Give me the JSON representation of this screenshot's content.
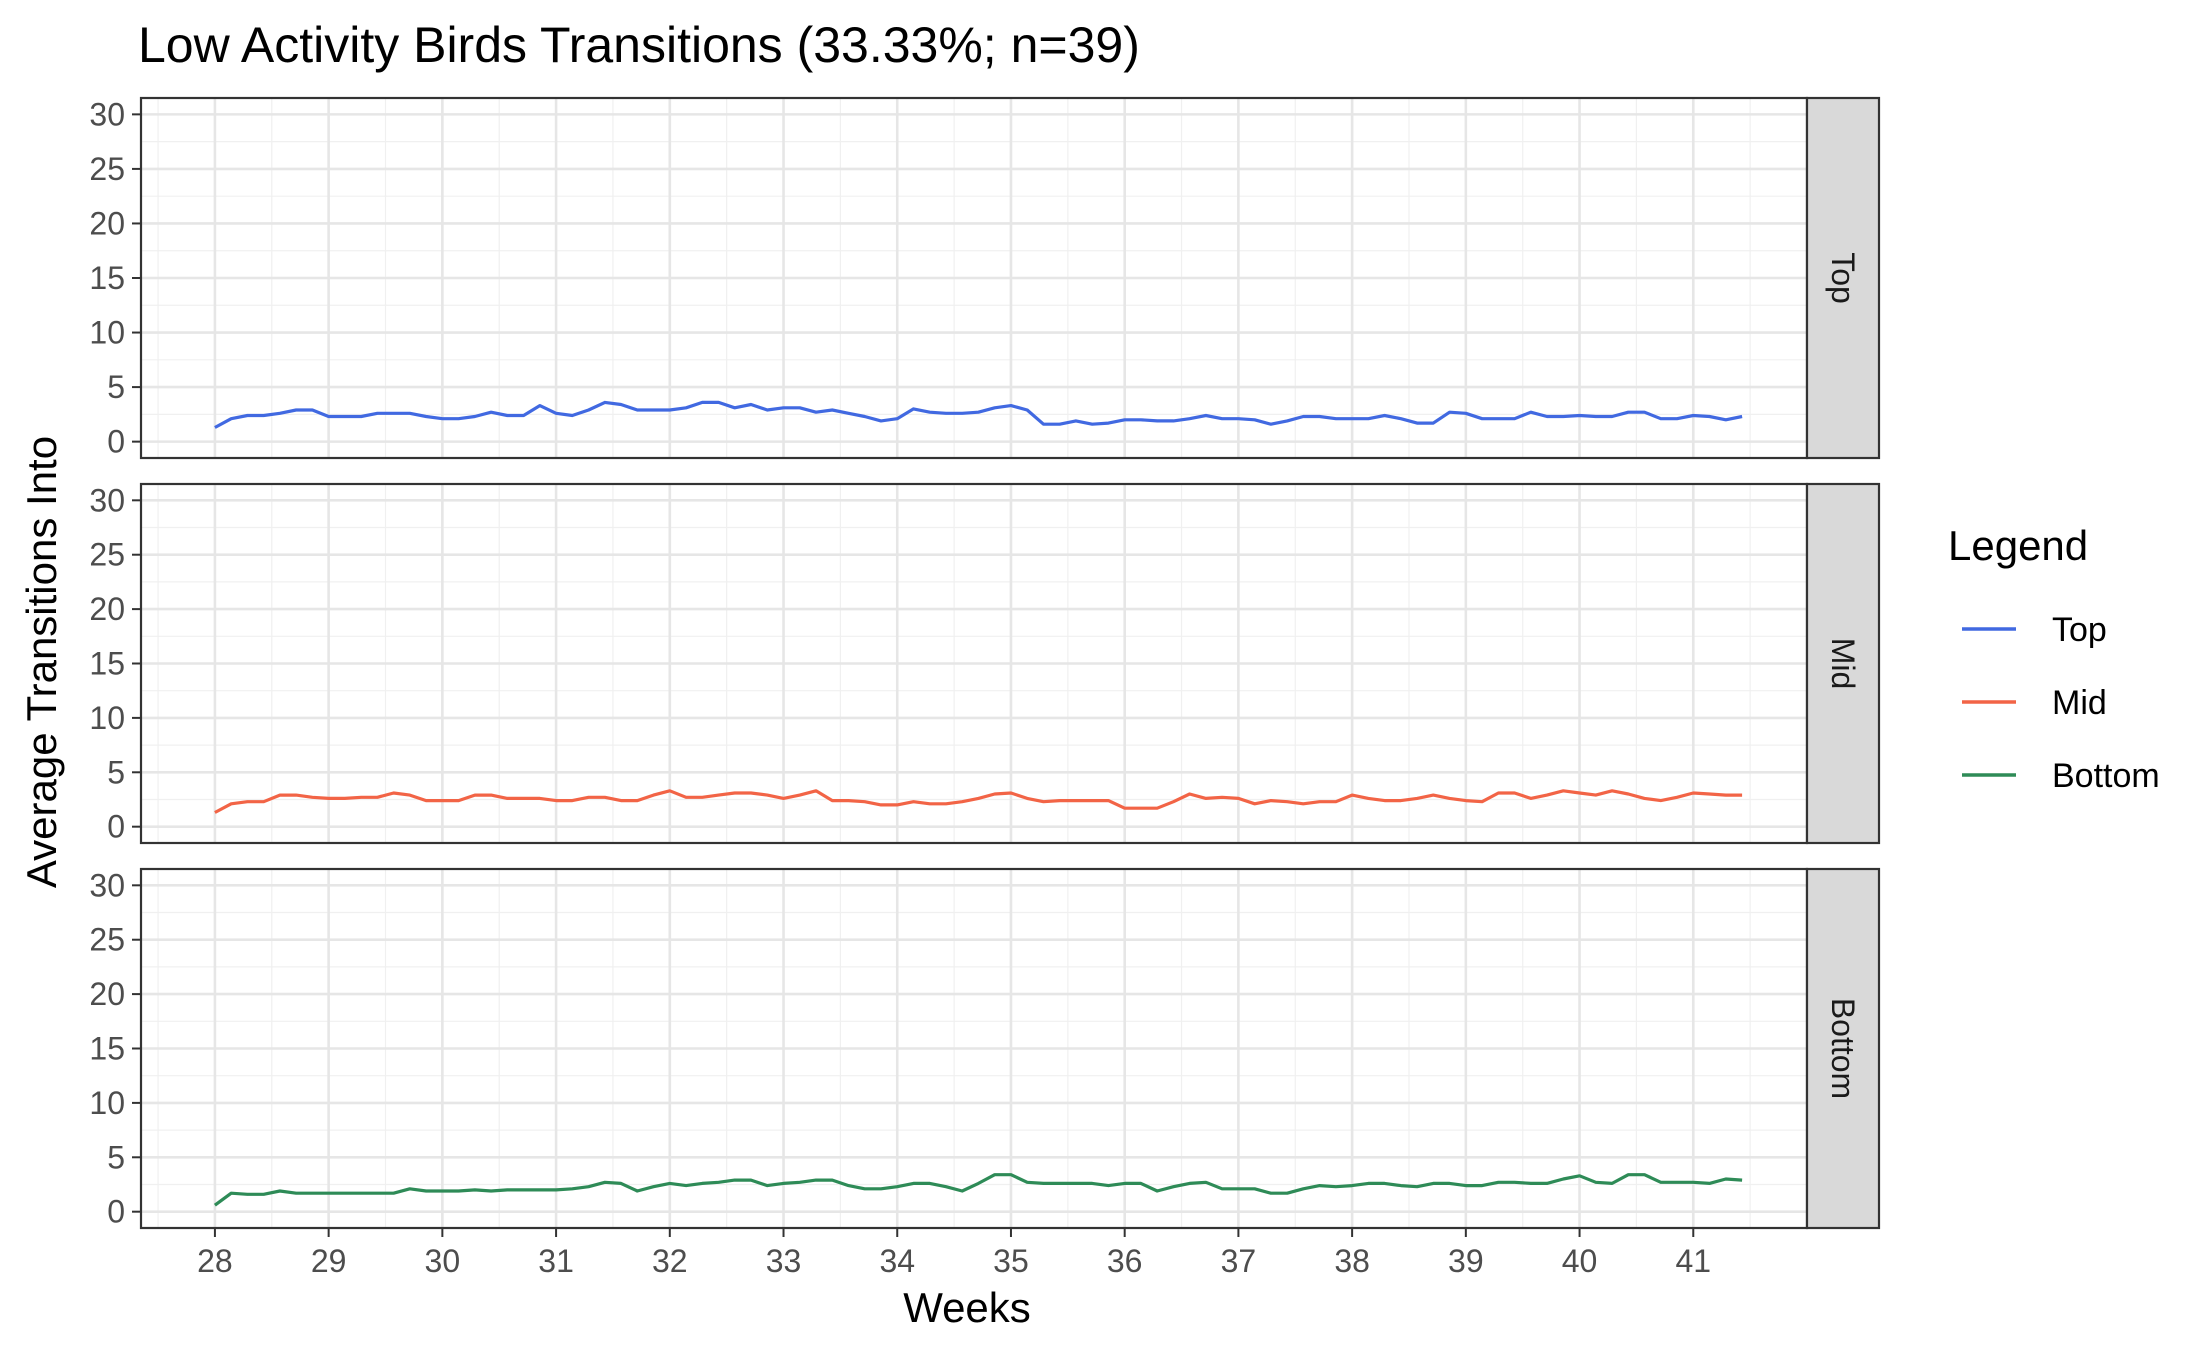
{
  "chart_data": {
    "type": "line",
    "title": "Low Activity Birds Transitions (33.33%; n=39)",
    "xlabel": "Weeks",
    "ylabel": "Average Transitions Into",
    "xlim": [
      27.35,
      42.0
    ],
    "ylim": [
      -1.5,
      31.5
    ],
    "x_ticks": [
      28,
      29,
      30,
      31,
      32,
      33,
      34,
      35,
      36,
      37,
      38,
      39,
      40,
      41
    ],
    "y_ticks": [
      0,
      5,
      10,
      15,
      20,
      25,
      30
    ],
    "grid": true,
    "facets": [
      "Top",
      "Mid",
      "Bottom"
    ],
    "legend": {
      "title": "Legend",
      "position": "right",
      "entries": [
        "Top",
        "Mid",
        "Bottom"
      ]
    },
    "x": [
      28.0,
      28.143,
      28.286,
      28.429,
      28.571,
      28.714,
      28.857,
      29.0,
      29.143,
      29.286,
      29.429,
      29.571,
      29.714,
      29.857,
      30.0,
      30.143,
      30.286,
      30.429,
      30.571,
      30.714,
      30.857,
      31.0,
      31.143,
      31.286,
      31.429,
      31.571,
      31.714,
      31.857,
      32.0,
      32.143,
      32.286,
      32.429,
      32.571,
      32.714,
      32.857,
      33.0,
      33.143,
      33.286,
      33.429,
      33.571,
      33.714,
      33.857,
      34.0,
      34.143,
      34.286,
      34.429,
      34.571,
      34.714,
      34.857,
      35.0,
      35.143,
      35.286,
      35.429,
      35.571,
      35.714,
      35.857,
      36.0,
      36.143,
      36.286,
      36.429,
      36.571,
      36.714,
      36.857,
      37.0,
      37.143,
      37.286,
      37.429,
      37.571,
      37.714,
      37.857,
      38.0,
      38.143,
      38.286,
      38.429,
      38.571,
      38.714,
      38.857,
      39.0,
      39.143,
      39.286,
      39.429,
      39.571,
      39.714,
      39.857,
      40.0,
      40.143,
      40.286,
      40.429,
      40.571,
      40.714,
      40.857,
      41.0,
      41.143,
      41.286,
      41.429
    ],
    "series": [
      {
        "name": "Top",
        "color": "#4169E1",
        "values": [
          1.3,
          2.1,
          2.4,
          2.4,
          2.6,
          2.9,
          2.9,
          2.3,
          2.3,
          2.3,
          2.6,
          2.6,
          2.6,
          2.3,
          2.1,
          2.1,
          2.3,
          2.7,
          2.4,
          2.4,
          3.3,
          2.6,
          2.4,
          2.9,
          3.6,
          3.4,
          2.9,
          2.9,
          2.9,
          3.1,
          3.6,
          3.6,
          3.1,
          3.4,
          2.9,
          3.1,
          3.1,
          2.7,
          2.9,
          2.6,
          2.3,
          1.9,
          2.1,
          3.0,
          2.7,
          2.6,
          2.6,
          2.7,
          3.1,
          3.3,
          2.9,
          1.6,
          1.6,
          1.9,
          1.6,
          1.7,
          2.0,
          2.0,
          1.9,
          1.9,
          2.1,
          2.4,
          2.1,
          2.1,
          2.0,
          1.6,
          1.9,
          2.3,
          2.3,
          2.1,
          2.1,
          2.1,
          2.4,
          2.1,
          1.7,
          1.7,
          2.7,
          2.6,
          2.1,
          2.1,
          2.1,
          2.7,
          2.3,
          2.3,
          2.4,
          2.3,
          2.3,
          2.7,
          2.7,
          2.1,
          2.1,
          2.4,
          2.3,
          2.0,
          2.3
        ]
      },
      {
        "name": "Mid",
        "color": "#F26446",
        "values": [
          1.3,
          2.1,
          2.3,
          2.3,
          2.9,
          2.9,
          2.7,
          2.6,
          2.6,
          2.7,
          2.7,
          3.1,
          2.9,
          2.4,
          2.4,
          2.4,
          2.9,
          2.9,
          2.6,
          2.6,
          2.6,
          2.4,
          2.4,
          2.7,
          2.7,
          2.4,
          2.4,
          2.9,
          3.3,
          2.7,
          2.7,
          2.9,
          3.1,
          3.1,
          2.9,
          2.6,
          2.9,
          3.3,
          2.4,
          2.4,
          2.3,
          2.0,
          2.0,
          2.3,
          2.1,
          2.1,
          2.3,
          2.6,
          3.0,
          3.1,
          2.6,
          2.3,
          2.4,
          2.4,
          2.4,
          2.4,
          1.7,
          1.7,
          1.7,
          2.3,
          3.0,
          2.6,
          2.7,
          2.6,
          2.1,
          2.4,
          2.3,
          2.1,
          2.3,
          2.3,
          2.9,
          2.6,
          2.4,
          2.4,
          2.6,
          2.9,
          2.6,
          2.4,
          2.3,
          3.1,
          3.1,
          2.6,
          2.9,
          3.3,
          3.1,
          2.9,
          3.3,
          3.0,
          2.6,
          2.4,
          2.7,
          3.1,
          3.0,
          2.9,
          2.9
        ]
      },
      {
        "name": "Bottom",
        "color": "#2E8B57",
        "values": [
          0.6,
          1.7,
          1.6,
          1.6,
          1.9,
          1.7,
          1.7,
          1.7,
          1.7,
          1.7,
          1.7,
          1.7,
          2.1,
          1.9,
          1.9,
          1.9,
          2.0,
          1.9,
          2.0,
          2.0,
          2.0,
          2.0,
          2.1,
          2.3,
          2.7,
          2.6,
          1.9,
          2.3,
          2.6,
          2.4,
          2.6,
          2.7,
          2.9,
          2.9,
          2.4,
          2.6,
          2.7,
          2.9,
          2.9,
          2.4,
          2.1,
          2.1,
          2.3,
          2.6,
          2.6,
          2.3,
          1.9,
          2.6,
          3.4,
          3.4,
          2.7,
          2.6,
          2.6,
          2.6,
          2.6,
          2.4,
          2.6,
          2.6,
          1.9,
          2.3,
          2.6,
          2.7,
          2.1,
          2.1,
          2.1,
          1.7,
          1.7,
          2.1,
          2.4,
          2.3,
          2.4,
          2.6,
          2.6,
          2.4,
          2.3,
          2.6,
          2.6,
          2.4,
          2.4,
          2.7,
          2.7,
          2.6,
          2.6,
          3.0,
          3.3,
          2.7,
          2.6,
          3.4,
          3.4,
          2.7,
          2.7,
          2.7,
          2.6,
          3.0,
          2.9
        ]
      }
    ]
  }
}
